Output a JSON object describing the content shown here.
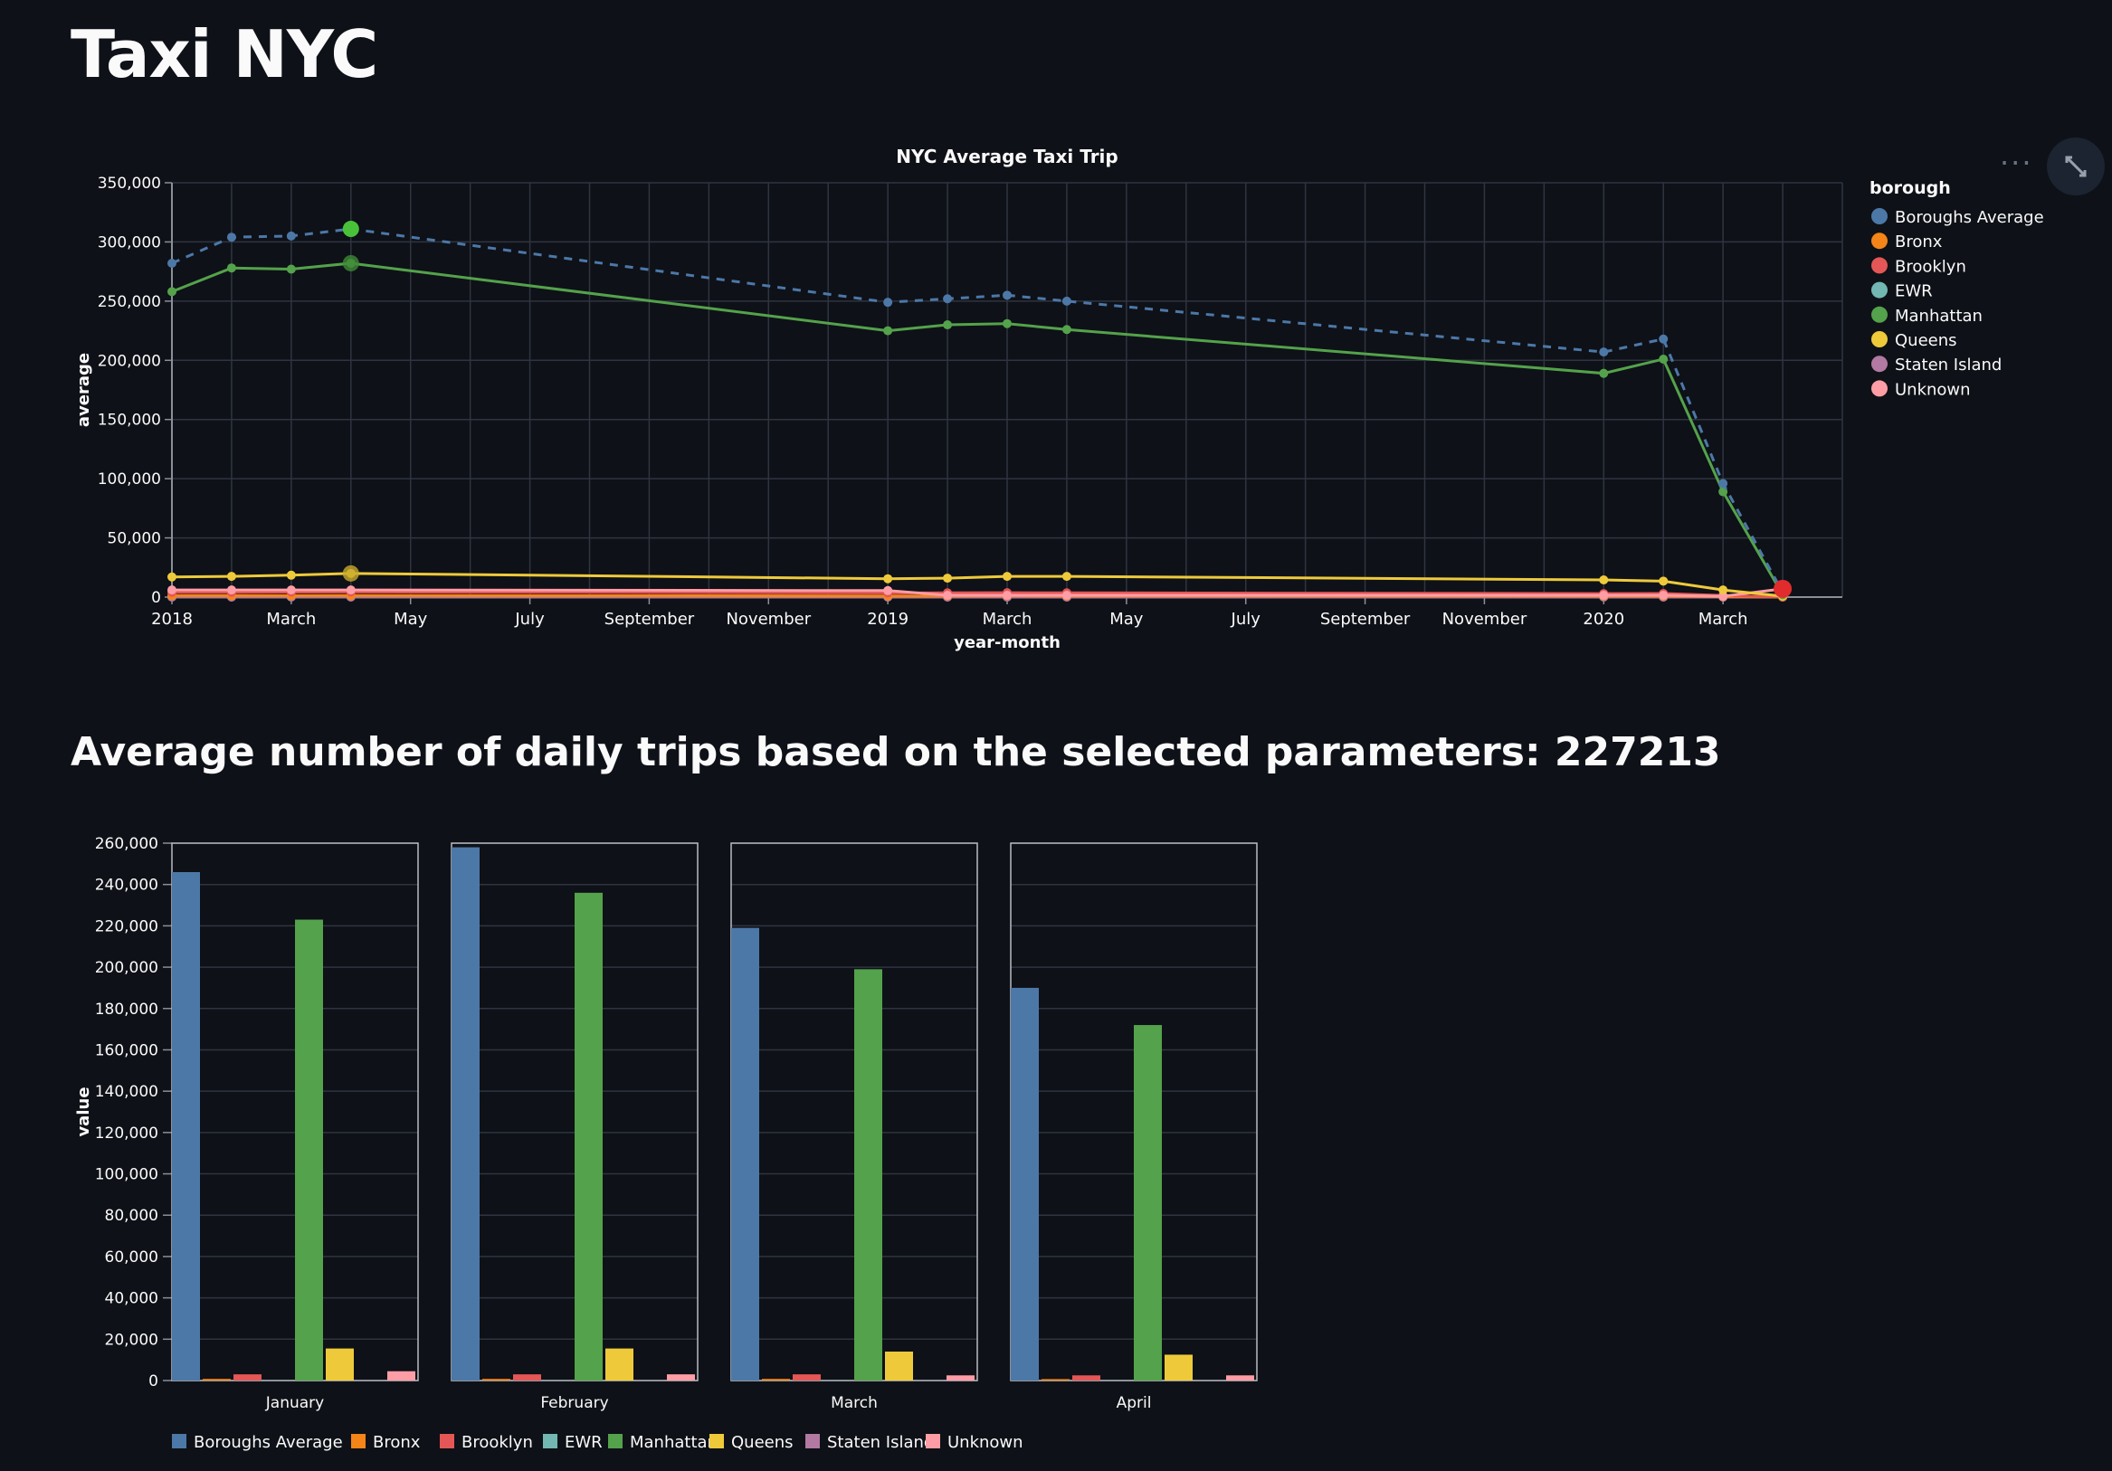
{
  "page": {
    "title": "Taxi NYC",
    "subheader": "Average number of daily trips based on the selected parameters: 227213"
  },
  "toolbar": {
    "menu_icon": "ellipsis-icon",
    "fullscreen_icon": "fullscreen-icon"
  },
  "colors": {
    "background": "#0e1117",
    "grid": "#2f3440",
    "axis": "#8a8f99",
    "series": {
      "Boroughs Average": "#4c78a8",
      "Bronx": "#f58518",
      "Brooklyn": "#e45756",
      "EWR": "#72b7b2",
      "Manhattan": "#54a24b",
      "Queens": "#eeca3b",
      "Staten Island": "#b279a2",
      "Unknown": "#ff9da6"
    }
  },
  "chart_data": [
    {
      "type": "line",
      "title": "NYC Average Taxi Trip",
      "xlabel": "year-month",
      "ylabel": "average",
      "ylim": [
        0,
        350000
      ],
      "yticks": [
        "0",
        "50,000",
        "100,000",
        "150,000",
        "200,000",
        "250,000",
        "300,000",
        "350,000"
      ],
      "xticks": [
        "2018",
        "March",
        "May",
        "July",
        "September",
        "November",
        "2019",
        "March",
        "May",
        "July",
        "September",
        "November",
        "2020",
        "March"
      ],
      "xlim": [
        "2018-01",
        "2020-05"
      ],
      "legend_title": "borough",
      "legend_position": "right",
      "grid": true,
      "x": [
        "2018-01",
        "2018-02",
        "2018-03",
        "2018-04",
        "2019-01",
        "2019-02",
        "2019-03",
        "2019-04",
        "2020-01",
        "2020-02",
        "2020-03",
        "2020-04"
      ],
      "series": [
        {
          "name": "Boroughs Average",
          "dashed": true,
          "values": [
            282000,
            304000,
            305000,
            311000,
            249000,
            252000,
            255000,
            250000,
            207000,
            218000,
            96000,
            4000
          ]
        },
        {
          "name": "Bronx",
          "values": [
            1200,
            1200,
            1200,
            1300,
            1000,
            1000,
            1100,
            1000,
            900,
            900,
            400,
            100
          ]
        },
        {
          "name": "Brooklyn",
          "values": [
            4000,
            4000,
            4200,
            4300,
            3500,
            3600,
            3700,
            3600,
            3000,
            3100,
            1300,
            200
          ]
        },
        {
          "name": "EWR",
          "values": [
            100,
            100,
            100,
            100,
            100,
            100,
            100,
            100,
            100,
            100,
            50,
            10
          ]
        },
        {
          "name": "Manhattan",
          "values": [
            258000,
            278000,
            277000,
            282000,
            225000,
            230000,
            231000,
            226000,
            189000,
            201000,
            89000,
            2000
          ]
        },
        {
          "name": "Queens",
          "values": [
            17000,
            17500,
            18500,
            20000,
            15500,
            16000,
            17500,
            17500,
            14500,
            13500,
            6000,
            800
          ]
        },
        {
          "name": "Staten Island",
          "values": [
            50,
            50,
            50,
            60,
            40,
            40,
            40,
            40,
            30,
            30,
            10,
            5
          ]
        },
        {
          "name": "Unknown",
          "values": [
            6000,
            6000,
            6000,
            6000,
            5500,
            1500,
            1500,
            1500,
            1500,
            1500,
            700,
            7000
          ]
        }
      ]
    },
    {
      "type": "bar",
      "ylabel": "value",
      "ylim": [
        0,
        260000
      ],
      "yticks": [
        "0",
        "20,000",
        "40,000",
        "60,000",
        "80,000",
        "100,000",
        "120,000",
        "140,000",
        "160,000",
        "180,000",
        "200,000",
        "220,000",
        "240,000",
        "260,000"
      ],
      "facets": [
        "January",
        "February",
        "March",
        "April"
      ],
      "categories": [
        "Boroughs Average",
        "Bronx",
        "Brooklyn",
        "EWR",
        "Manhattan",
        "Queens",
        "Staten Island",
        "Unknown"
      ],
      "legend_position": "bottom",
      "grid": true,
      "series": [
        {
          "name": "January",
          "values": [
            246000,
            800,
            3000,
            100,
            223000,
            15500,
            50,
            4500
          ]
        },
        {
          "name": "February",
          "values": [
            258000,
            800,
            3000,
            100,
            236000,
            15500,
            50,
            3000
          ]
        },
        {
          "name": "March",
          "values": [
            219000,
            800,
            3000,
            100,
            199000,
            14000,
            50,
            2500
          ]
        },
        {
          "name": "April",
          "values": [
            190000,
            700,
            2500,
            100,
            172000,
            12500,
            50,
            2500
          ]
        }
      ]
    }
  ]
}
